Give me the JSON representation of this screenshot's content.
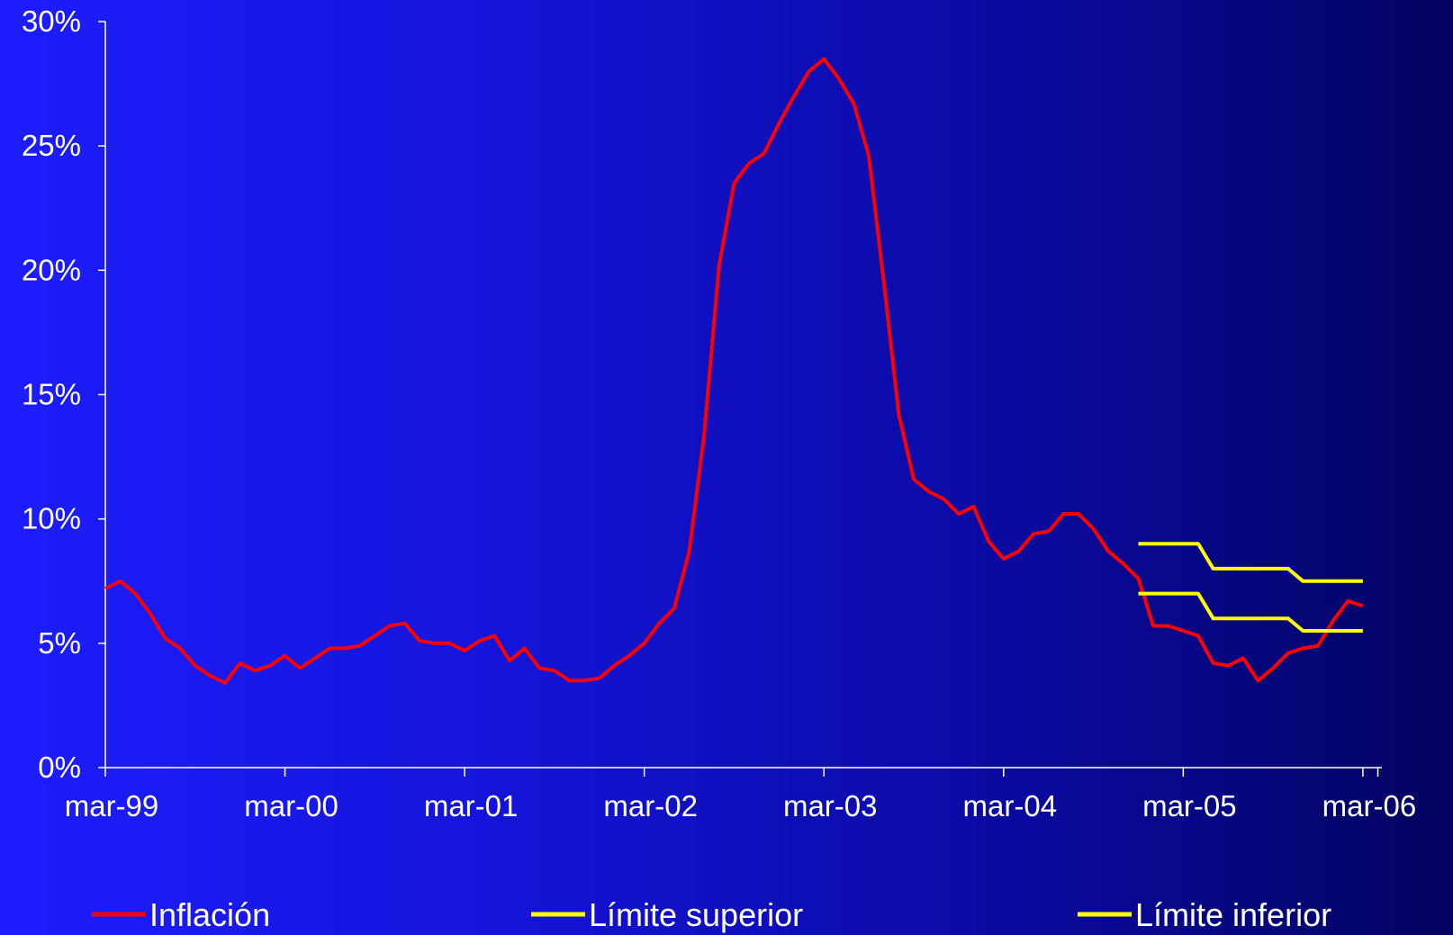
{
  "chart_data": {
    "type": "line",
    "title": "",
    "xlabel": "",
    "ylabel": "",
    "x_tick_labels": [
      "mar-99",
      "mar-00",
      "mar-01",
      "mar-02",
      "mar-03",
      "mar-04",
      "mar-05",
      "mar-06"
    ],
    "y_tick_labels": [
      "0%",
      "5%",
      "10%",
      "15%",
      "20%",
      "25%",
      "30%"
    ],
    "ylim": [
      0,
      30
    ],
    "xlim": [
      "1999-03",
      "2006-04"
    ],
    "grid": false,
    "legend_position": "bottom",
    "series": [
      {
        "name": "Inflación",
        "color": "#ff0000",
        "points": [
          [
            "1999-03",
            7.2
          ],
          [
            "1999-04",
            7.5
          ],
          [
            "1999-05",
            7.0
          ],
          [
            "1999-06",
            6.2
          ],
          [
            "1999-07",
            5.2
          ],
          [
            "1999-08",
            4.8
          ],
          [
            "1999-09",
            4.1
          ],
          [
            "1999-10",
            3.7
          ],
          [
            "1999-11",
            3.4
          ],
          [
            "1999-12",
            4.2
          ],
          [
            "2000-01",
            3.9
          ],
          [
            "2000-02",
            4.1
          ],
          [
            "2000-03",
            4.5
          ],
          [
            "2000-04",
            4.0
          ],
          [
            "2000-05",
            4.4
          ],
          [
            "2000-06",
            4.8
          ],
          [
            "2000-07",
            4.8
          ],
          [
            "2000-08",
            4.9
          ],
          [
            "2000-09",
            5.3
          ],
          [
            "2000-10",
            5.7
          ],
          [
            "2000-11",
            5.8
          ],
          [
            "2000-12",
            5.1
          ],
          [
            "2001-01",
            5.0
          ],
          [
            "2001-02",
            5.0
          ],
          [
            "2001-03",
            4.7
          ],
          [
            "2001-04",
            5.1
          ],
          [
            "2001-05",
            5.3
          ],
          [
            "2001-06",
            4.3
          ],
          [
            "2001-07",
            4.8
          ],
          [
            "2001-08",
            4.0
          ],
          [
            "2001-09",
            3.9
          ],
          [
            "2001-10",
            3.5
          ],
          [
            "2001-11",
            3.5
          ],
          [
            "2001-12",
            3.6
          ],
          [
            "2002-01",
            4.1
          ],
          [
            "2002-02",
            4.5
          ],
          [
            "2002-03",
            5.0
          ],
          [
            "2002-04",
            5.8
          ],
          [
            "2002-05",
            6.4
          ],
          [
            "2002-06",
            8.7
          ],
          [
            "2002-07",
            13.4
          ],
          [
            "2002-08",
            20.2
          ],
          [
            "2002-09",
            23.5
          ],
          [
            "2002-10",
            24.3
          ],
          [
            "2002-11",
            24.7
          ],
          [
            "2002-12",
            25.9
          ],
          [
            "2003-01",
            27.0
          ],
          [
            "2003-02",
            28.0
          ],
          [
            "2003-03",
            28.5
          ],
          [
            "2003-04",
            27.7
          ],
          [
            "2003-05",
            26.7
          ],
          [
            "2003-06",
            24.6
          ],
          [
            "2003-07",
            19.5
          ],
          [
            "2003-08",
            14.2
          ],
          [
            "2003-09",
            11.6
          ],
          [
            "2003-10",
            11.1
          ],
          [
            "2003-11",
            10.8
          ],
          [
            "2003-12",
            10.2
          ],
          [
            "2004-01",
            10.5
          ],
          [
            "2004-02",
            9.1
          ],
          [
            "2004-03",
            8.4
          ],
          [
            "2004-04",
            8.7
          ],
          [
            "2004-05",
            9.4
          ],
          [
            "2004-06",
            9.5
          ],
          [
            "2004-07",
            10.2
          ],
          [
            "2004-08",
            10.2
          ],
          [
            "2004-09",
            9.6
          ],
          [
            "2004-10",
            8.7
          ],
          [
            "2004-11",
            8.2
          ],
          [
            "2004-12",
            7.6
          ],
          [
            "2005-01",
            5.7
          ],
          [
            "2005-02",
            5.7
          ],
          [
            "2005-03",
            5.5
          ],
          [
            "2005-04",
            5.3
          ],
          [
            "2005-05",
            4.2
          ],
          [
            "2005-06",
            4.1
          ],
          [
            "2005-07",
            4.4
          ],
          [
            "2005-08",
            3.5
          ],
          [
            "2005-09",
            4.0
          ],
          [
            "2005-10",
            4.6
          ],
          [
            "2005-11",
            4.8
          ],
          [
            "2005-12",
            4.9
          ],
          [
            "2006-01",
            5.9
          ],
          [
            "2006-02",
            6.7
          ],
          [
            "2006-03",
            6.5
          ]
        ]
      },
      {
        "name": "Límite superior",
        "color": "#ffff00",
        "points": [
          [
            "2004-12",
            9.0
          ],
          [
            "2005-01",
            9.0
          ],
          [
            "2005-02",
            9.0
          ],
          [
            "2005-03",
            9.0
          ],
          [
            "2005-04",
            9.0
          ],
          [
            "2005-05",
            8.0
          ],
          [
            "2005-06",
            8.0
          ],
          [
            "2005-07",
            8.0
          ],
          [
            "2005-08",
            8.0
          ],
          [
            "2005-09",
            8.0
          ],
          [
            "2005-10",
            8.0
          ],
          [
            "2005-11",
            7.5
          ],
          [
            "2005-12",
            7.5
          ],
          [
            "2006-01",
            7.5
          ],
          [
            "2006-02",
            7.5
          ],
          [
            "2006-03",
            7.5
          ]
        ]
      },
      {
        "name": "Límite inferior",
        "color": "#ffff00",
        "points": [
          [
            "2004-12",
            7.0
          ],
          [
            "2005-01",
            7.0
          ],
          [
            "2005-02",
            7.0
          ],
          [
            "2005-03",
            7.0
          ],
          [
            "2005-04",
            7.0
          ],
          [
            "2005-05",
            6.0
          ],
          [
            "2005-06",
            6.0
          ],
          [
            "2005-07",
            6.0
          ],
          [
            "2005-08",
            6.0
          ],
          [
            "2005-09",
            6.0
          ],
          [
            "2005-10",
            6.0
          ],
          [
            "2005-11",
            5.5
          ],
          [
            "2005-12",
            5.5
          ],
          [
            "2006-01",
            5.5
          ],
          [
            "2006-02",
            5.5
          ],
          [
            "2006-03",
            5.5
          ]
        ]
      }
    ]
  }
}
